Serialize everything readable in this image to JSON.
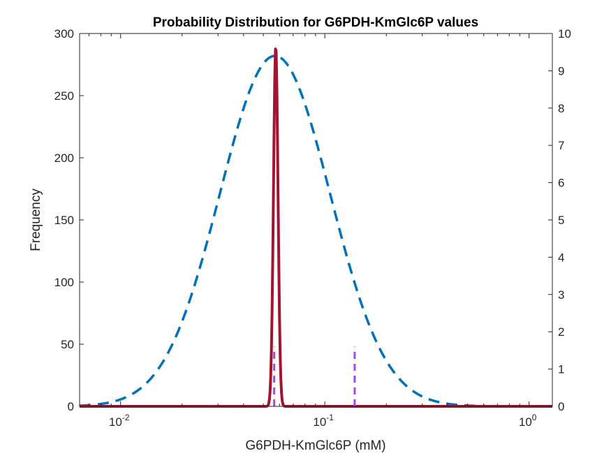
{
  "chart_data": {
    "type": "line",
    "title": "Probability Distribution for G6PDH-KmGlc6P values",
    "xlabel": "G6PDH-KmGlc6P (mM)",
    "ylabel": "Frequency",
    "x_scale": "log",
    "xlim": [
      0.0063,
      1.3
    ],
    "ylim": [
      0,
      300
    ],
    "y2lim": [
      0,
      10
    ],
    "x_ticks": [
      {
        "value": 0.01,
        "base": "10",
        "exp": "-2"
      },
      {
        "value": 0.1,
        "base": "10",
        "exp": "-1"
      },
      {
        "value": 1,
        "base": "10",
        "exp": "0"
      }
    ],
    "y_ticks": [
      "0",
      "50",
      "100",
      "150",
      "200",
      "250",
      "300"
    ],
    "y2_ticks": [
      "0",
      "1",
      "2",
      "3",
      "4",
      "5",
      "6",
      "7",
      "8",
      "9",
      "10"
    ],
    "grid": false,
    "legend": "none",
    "series": [
      {
        "axis": "right",
        "style": "dashed",
        "color": "#0072BD",
        "distribution": "lognormal",
        "peak_x": 0.057,
        "peak_y": 9.4,
        "log10_sigma": 0.27
      },
      {
        "axis": "left",
        "style": "solid",
        "color": "#A2142F",
        "distribution": "lognormal",
        "peak_x": 0.0575,
        "peak_y": 290,
        "log10_sigma": 0.011
      }
    ],
    "markers": [
      {
        "x": 0.0565,
        "y_top": 48,
        "style": "dashed",
        "color": "#A349E8"
      },
      {
        "x": 0.14,
        "y_top": 48,
        "style": "dashed",
        "color": "#A349E8"
      }
    ]
  }
}
